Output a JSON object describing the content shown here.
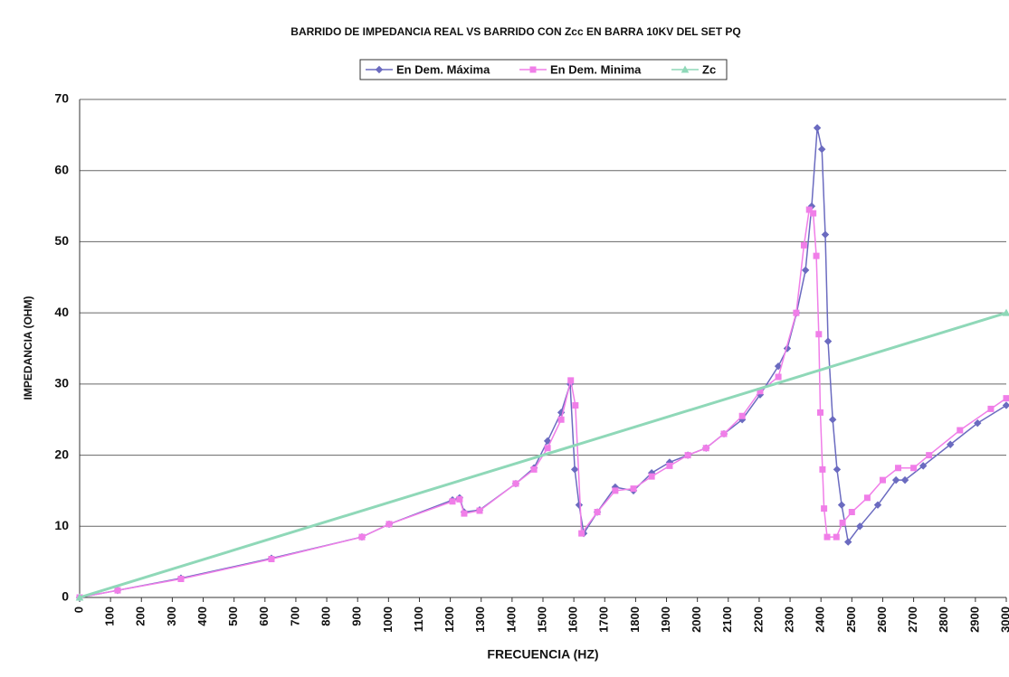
{
  "chart_data": {
    "type": "line",
    "title": "BARRIDO DE IMPEDANCIA REAL VS BARRIDO CON Zcc EN BARRA 10KV  DEL SET PQ",
    "x_label": "FRECUENCIA (HZ)",
    "y_label": "IMPEDANCIA (OHM)",
    "xlim": [
      0,
      3000
    ],
    "xticks": [
      0,
      100,
      200,
      300,
      400,
      500,
      600,
      700,
      800,
      900,
      1000,
      1100,
      1200,
      1300,
      1400,
      1500,
      1600,
      1700,
      1800,
      1900,
      2000,
      2100,
      2200,
      2300,
      2400,
      2500,
      2600,
      2700,
      2800,
      2900,
      3000
    ],
    "ylim": [
      0,
      70
    ],
    "yticks": [
      0,
      10,
      20,
      30,
      40,
      50,
      60,
      70
    ],
    "grid": true,
    "legend": "top",
    "series": [
      {
        "name": "En Dem. Máxima",
        "color": "#6b6bc0",
        "marker": "diamond",
        "x": [
          0,
          123,
          328,
          621,
          914,
          1002,
          1207,
          1230,
          1245,
          1295,
          1412,
          1471,
          1515,
          1559,
          1588,
          1603,
          1617,
          1632,
          1676,
          1734,
          1793,
          1852,
          1910,
          1969,
          2028,
          2086,
          2145,
          2203,
          2262,
          2291,
          2321,
          2350,
          2370,
          2388,
          2403,
          2414,
          2423,
          2438,
          2452,
          2467,
          2488,
          2526,
          2584,
          2643,
          2672,
          2731,
          2819,
          2907,
          3000
        ],
        "values": [
          0,
          1,
          2.7,
          5.5,
          8.5,
          10.3,
          13.7,
          14,
          12,
          12.3,
          16,
          18.2,
          22,
          26,
          30,
          18,
          13,
          9,
          12,
          15.5,
          15,
          17.5,
          19,
          20,
          21,
          23,
          25,
          28.5,
          32.5,
          35,
          40,
          46,
          55,
          66,
          63,
          51,
          36,
          25,
          18,
          13,
          7.8,
          10,
          13,
          16.5,
          16.5,
          18.5,
          21.5,
          24.5,
          27
        ]
      },
      {
        "name": "En Dem. Minima",
        "color": "#f07ee8",
        "marker": "square",
        "x": [
          0,
          123,
          328,
          621,
          914,
          1002,
          1207,
          1230,
          1245,
          1295,
          1412,
          1471,
          1515,
          1559,
          1590,
          1605,
          1625,
          1676,
          1734,
          1793,
          1852,
          1910,
          1969,
          2028,
          2086,
          2145,
          2203,
          2262,
          2320,
          2345,
          2362,
          2375,
          2385,
          2393,
          2398,
          2405,
          2410,
          2420,
          2450,
          2470,
          2500,
          2550,
          2600,
          2650,
          2700,
          2750,
          2850,
          2950,
          3000
        ],
        "values": [
          0,
          1,
          2.6,
          5.4,
          8.5,
          10.3,
          13.5,
          13.8,
          11.8,
          12.2,
          16,
          18,
          21,
          25,
          30.5,
          27,
          9,
          12,
          15,
          15.3,
          17,
          18.5,
          20,
          21,
          23,
          25.5,
          29,
          31,
          40,
          49.5,
          54.5,
          54,
          48,
          37,
          26,
          18,
          12.5,
          8.5,
          8.5,
          10.5,
          12,
          14,
          16.5,
          18.2,
          18.2,
          20,
          23.5,
          26.5,
          28
        ]
      },
      {
        "name": "Zc",
        "color": "#8fd8b8",
        "marker": "triangle",
        "x": [
          0,
          3000
        ],
        "values": [
          0,
          40
        ]
      }
    ]
  }
}
